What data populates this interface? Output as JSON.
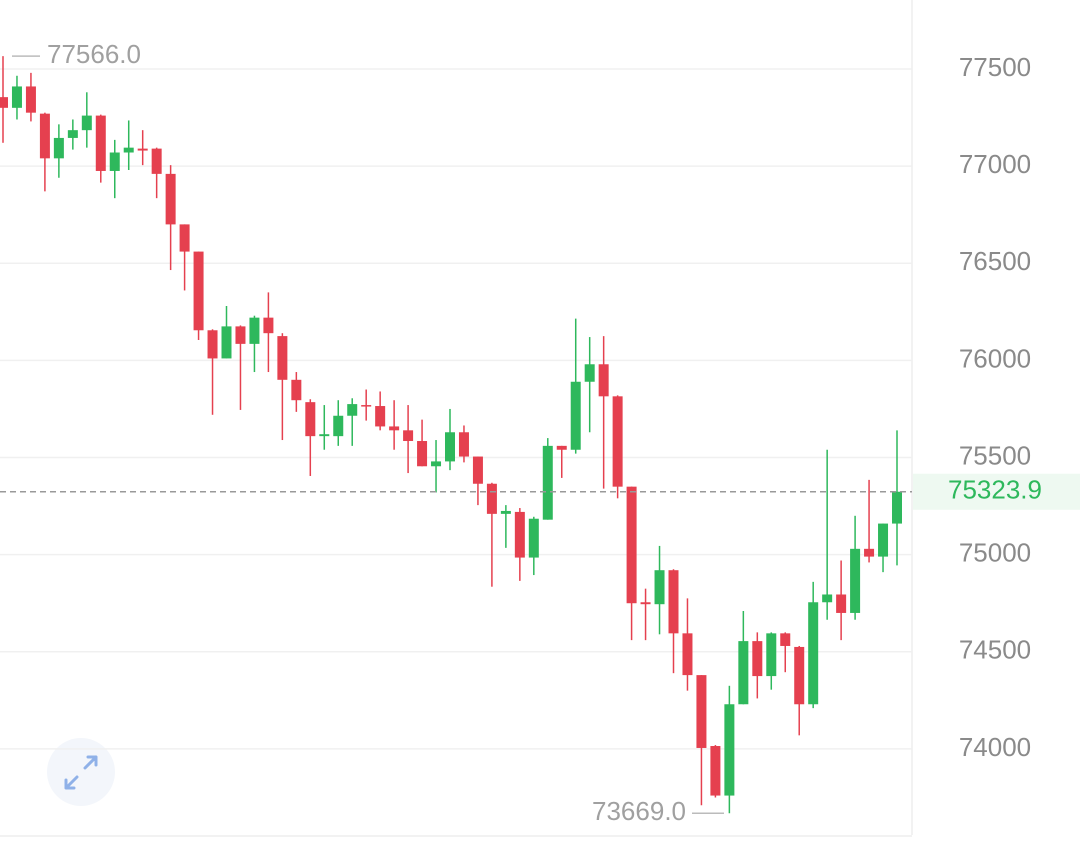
{
  "chart_data": {
    "type": "candlestick",
    "open": [
      77355,
      77300,
      77410,
      77270,
      77040,
      77145,
      77185,
      77260,
      76975,
      77070,
      77090,
      77090,
      76960,
      76700,
      76560,
      76155,
      76010,
      76175,
      76085,
      76220,
      76125,
      75900,
      75785,
      75610,
      75610,
      75715,
      75770,
      75765,
      75660,
      75640,
      75585,
      75455,
      75480,
      75630,
      75505,
      75365,
      75210,
      75220,
      74985,
      75180,
      75560,
      75540,
      75890,
      75980,
      75815,
      75350,
      74755,
      74745,
      74920,
      74595,
      74380,
      74015,
      73760,
      74230,
      74555,
      74375,
      74595,
      74525,
      74230,
      74755,
      74795,
      74700,
      75030,
      74990,
      75160
    ],
    "high": [
      77566,
      77465,
      77480,
      77275,
      77215,
      77240,
      77380,
      77265,
      77135,
      77235,
      77185,
      77095,
      77005,
      76700,
      76560,
      76160,
      76280,
      76180,
      76230,
      76350,
      76140,
      75940,
      75800,
      75770,
      75795,
      75805,
      75850,
      75840,
      75795,
      75770,
      75695,
      75590,
      75750,
      75665,
      75505,
      75370,
      75255,
      75240,
      75195,
      75600,
      75560,
      76215,
      76120,
      76125,
      75820,
      75350,
      74825,
      75045,
      74925,
      74775,
      74380,
      74020,
      74325,
      74710,
      74600,
      74600,
      74600,
      74530,
      74860,
      75540,
      74970,
      75200,
      75385,
      75160,
      75640
    ],
    "low": [
      77120,
      77240,
      77230,
      76870,
      76940,
      77085,
      77095,
      76915,
      76835,
      76980,
      77005,
      76835,
      76465,
      76360,
      76105,
      75720,
      76010,
      75745,
      75940,
      75940,
      75590,
      75735,
      75405,
      75540,
      75560,
      75560,
      75690,
      75640,
      75540,
      75420,
      75455,
      75320,
      75435,
      75475,
      75255,
      74835,
      75035,
      74865,
      74895,
      75180,
      75395,
      75520,
      75630,
      75340,
      75290,
      74560,
      74560,
      74590,
      74390,
      74300,
      73710,
      73750,
      73669,
      74230,
      74260,
      74305,
      74395,
      74070,
      74210,
      74665,
      74560,
      74665,
      74960,
      74910,
      74945
    ],
    "close": [
      77300,
      77410,
      77275,
      77040,
      77145,
      77185,
      77260,
      76975,
      77070,
      77095,
      77080,
      76960,
      76700,
      76560,
      76155,
      76010,
      76175,
      76085,
      76220,
      76140,
      75900,
      75795,
      75610,
      75620,
      75715,
      75775,
      75765,
      75660,
      75640,
      75585,
      75455,
      75480,
      75630,
      75505,
      75365,
      75210,
      75225,
      74985,
      75185,
      75560,
      75540,
      75890,
      75980,
      75815,
      75350,
      74750,
      74745,
      74920,
      74595,
      74380,
      74005,
      73760,
      74230,
      74555,
      74375,
      74595,
      74530,
      74230,
      74755,
      74795,
      74700,
      75030,
      74990,
      75160,
      75323.9
    ],
    "up_color": "#2eb85c",
    "down_color": "#e5404f",
    "ylim": [
      73557,
      77855
    ],
    "yticks": [
      74000,
      74500,
      75000,
      75500,
      76000,
      76500,
      77000,
      77500
    ],
    "grid": true,
    "high_label": {
      "value": 77566,
      "label": "77566.0"
    },
    "low_label": {
      "value": 73669,
      "label": "73669.0"
    },
    "last_price": 75323.9
  }
}
